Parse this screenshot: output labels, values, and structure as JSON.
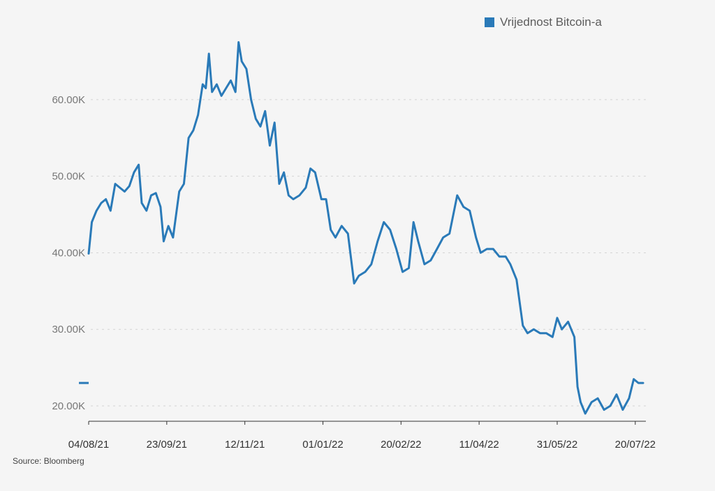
{
  "legend": {
    "label": "Vrijednost Bitcoin-a"
  },
  "source": "Source: Bloomberg",
  "colors": {
    "series": "#2a7ab8",
    "axis_text": "#777777",
    "grid": "#d4d4d4",
    "axis": "#333333",
    "background": "#f5f5f5"
  },
  "chart_data": {
    "type": "line",
    "title": "",
    "xlabel": "",
    "ylabel": "",
    "grid": true,
    "legend_position": "top-right",
    "xlim": [
      "2021-08-04",
      "2022-07-25"
    ],
    "ylim": [
      18000,
      67000
    ],
    "y_ticks": [
      20000,
      30000,
      40000,
      50000,
      60000
    ],
    "y_tick_labels": [
      "20.00K",
      "30.00K",
      "40.00K",
      "50.00K",
      "60.00K"
    ],
    "x_ticks": [
      "2021-08-04",
      "2021-09-23",
      "2021-11-12",
      "2022-01-01",
      "2022-02-20",
      "2022-04-11",
      "2022-05-31",
      "2022-07-20"
    ],
    "x_tick_labels": [
      "04/08/21",
      "23/09/21",
      "12/11/21",
      "01/01/22",
      "20/02/22",
      "11/04/22",
      "31/05/22",
      "20/07/22"
    ],
    "series": [
      {
        "name": "Vrijednost Bitcoin-a",
        "x": [
          "2021-08-04",
          "2021-08-06",
          "2021-08-09",
          "2021-08-12",
          "2021-08-15",
          "2021-08-18",
          "2021-08-21",
          "2021-08-24",
          "2021-08-27",
          "2021-08-30",
          "2021-09-02",
          "2021-09-05",
          "2021-09-07",
          "2021-09-10",
          "2021-09-13",
          "2021-09-16",
          "2021-09-19",
          "2021-09-21",
          "2021-09-24",
          "2021-09-27",
          "2021-10-01",
          "2021-10-04",
          "2021-10-07",
          "2021-10-10",
          "2021-10-13",
          "2021-10-16",
          "2021-10-18",
          "2021-10-20",
          "2021-10-22",
          "2021-10-25",
          "2021-10-28",
          "2021-10-31",
          "2021-11-03",
          "2021-11-06",
          "2021-11-08",
          "2021-11-10",
          "2021-11-13",
          "2021-11-16",
          "2021-11-19",
          "2021-11-22",
          "2021-11-25",
          "2021-11-28",
          "2021-12-01",
          "2021-12-04",
          "2021-12-07",
          "2021-12-10",
          "2021-12-13",
          "2021-12-17",
          "2021-12-21",
          "2021-12-24",
          "2021-12-27",
          "2021-12-31",
          "2022-01-03",
          "2022-01-06",
          "2022-01-09",
          "2022-01-13",
          "2022-01-17",
          "2022-01-21",
          "2022-01-24",
          "2022-01-28",
          "2022-02-01",
          "2022-02-05",
          "2022-02-09",
          "2022-02-13",
          "2022-02-17",
          "2022-02-21",
          "2022-02-25",
          "2022-02-28",
          "2022-03-03",
          "2022-03-07",
          "2022-03-11",
          "2022-03-15",
          "2022-03-19",
          "2022-03-23",
          "2022-03-28",
          "2022-04-01",
          "2022-04-05",
          "2022-04-09",
          "2022-04-12",
          "2022-04-16",
          "2022-04-20",
          "2022-04-24",
          "2022-04-28",
          "2022-05-01",
          "2022-05-05",
          "2022-05-09",
          "2022-05-12",
          "2022-05-16",
          "2022-05-20",
          "2022-05-24",
          "2022-05-28",
          "2022-05-31",
          "2022-06-03",
          "2022-06-07",
          "2022-06-11",
          "2022-06-13",
          "2022-06-15",
          "2022-06-18",
          "2022-06-22",
          "2022-06-26",
          "2022-06-30",
          "2022-07-04",
          "2022-07-08",
          "2022-07-12",
          "2022-07-16",
          "2022-07-19",
          "2022-07-22",
          "2022-07-25"
        ],
        "values": [
          39900,
          44000,
          45500,
          46500,
          47000,
          45500,
          49000,
          48500,
          48000,
          48700,
          50500,
          51500,
          46500,
          45500,
          47500,
          47800,
          46000,
          41500,
          43500,
          42000,
          48000,
          49000,
          55000,
          56000,
          58000,
          62000,
          61500,
          66000,
          61000,
          62000,
          60500,
          61500,
          62500,
          61000,
          67500,
          65000,
          64000,
          60000,
          57500,
          56500,
          58500,
          54000,
          57000,
          49000,
          50500,
          47500,
          47000,
          47500,
          48500,
          51000,
          50500,
          47000,
          47000,
          43000,
          42000,
          43500,
          42500,
          36000,
          37000,
          37500,
          38500,
          41500,
          44000,
          43000,
          40500,
          37500,
          38000,
          44000,
          41500,
          38500,
          39000,
          40500,
          42000,
          42500,
          47500,
          46000,
          45500,
          42000,
          40000,
          40500,
          40500,
          39500,
          39500,
          38500,
          36500,
          30500,
          29500,
          30000,
          29500,
          29500,
          29000,
          31500,
          30000,
          31000,
          29000,
          22500,
          20500,
          19000,
          20500,
          21000,
          19500,
          20000,
          21500,
          19500,
          21000,
          23500,
          23000,
          23000
        ]
      }
    ]
  }
}
